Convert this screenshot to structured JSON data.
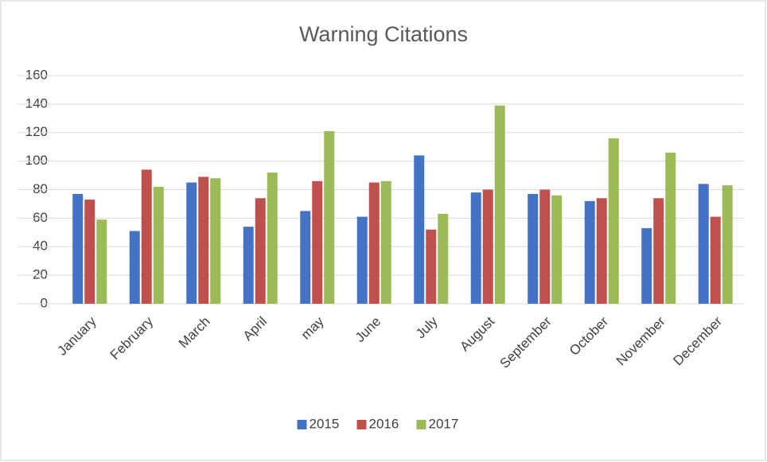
{
  "chart_data": {
    "type": "bar",
    "title": "Warning Citations",
    "categories": [
      "January",
      "February",
      "March",
      "April",
      "may",
      "June",
      "July",
      "August",
      "September",
      "October",
      "November",
      "December"
    ],
    "series": [
      {
        "name": "2015",
        "color": "#4472c4",
        "values": [
          77,
          51,
          85,
          54,
          65,
          61,
          104,
          78,
          77,
          72,
          53,
          84
        ]
      },
      {
        "name": "2016",
        "color": "#c0504d",
        "values": [
          73,
          94,
          89,
          74,
          86,
          85,
          52,
          80,
          80,
          74,
          74,
          61
        ]
      },
      {
        "name": "2017",
        "color": "#9bbb59",
        "values": [
          59,
          82,
          88,
          92,
          121,
          86,
          63,
          139,
          76,
          116,
          106,
          83
        ]
      }
    ],
    "ylim": [
      0,
      160
    ],
    "yticks": [
      0,
      20,
      40,
      60,
      80,
      100,
      120,
      140,
      160
    ],
    "grid": true,
    "legend": "bottom"
  }
}
